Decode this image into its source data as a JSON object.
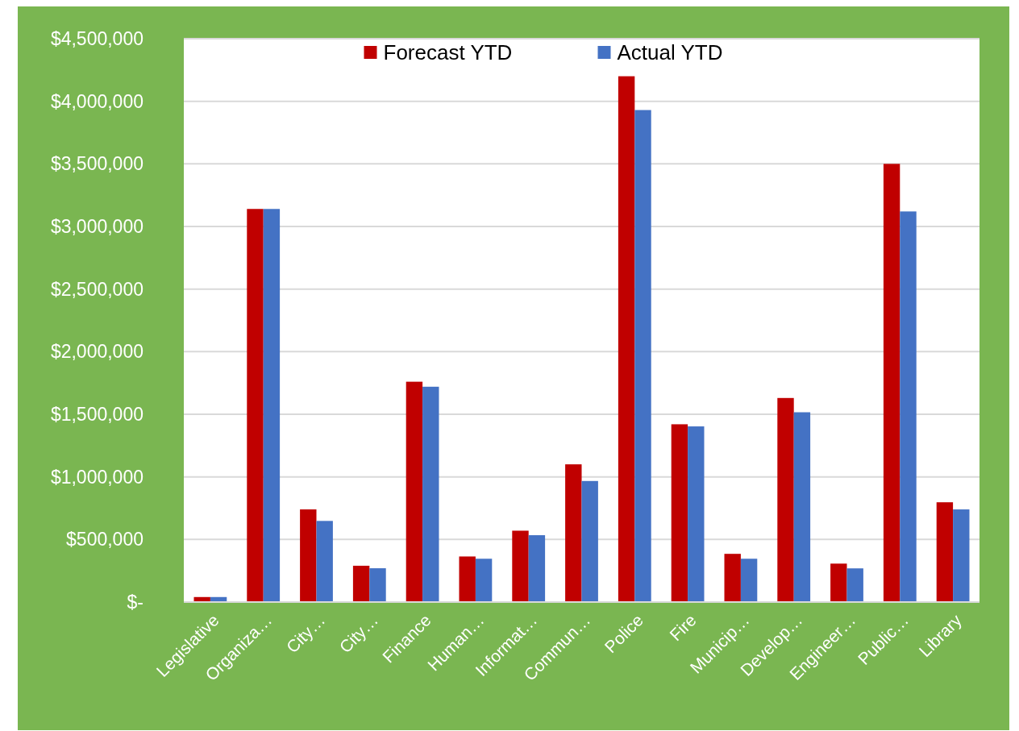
{
  "chart_data": {
    "type": "bar",
    "categories": [
      "Legislative",
      "Organiza…",
      "City…",
      "City…",
      "Finance",
      "Human…",
      "Informat…",
      "Commun…",
      "Police",
      "Fire",
      "Municip…",
      "Develop…",
      "Engineer…",
      "Public…",
      "Library"
    ],
    "series": [
      {
        "name": "Forecast YTD",
        "color": "#c00000",
        "values": [
          40000,
          3140000,
          740000,
          290000,
          1760000,
          364000,
          570000,
          1100000,
          4200000,
          1420000,
          385000,
          1630000,
          307000,
          3500000,
          797000
        ]
      },
      {
        "name": "Actual YTD",
        "color": "#4472c4",
        "values": [
          40000,
          3140000,
          648000,
          270000,
          1720000,
          346000,
          534000,
          967000,
          3930000,
          1403000,
          346000,
          1516000,
          269000,
          3120000,
          740000
        ]
      }
    ],
    "ylim": [
      0,
      4500000
    ],
    "yticks": [
      {
        "value": 0,
        "label": "$-"
      },
      {
        "value": 500000,
        "label": "$500,000"
      },
      {
        "value": 1000000,
        "label": "$1,000,000"
      },
      {
        "value": 1500000,
        "label": "$1,500,000"
      },
      {
        "value": 2000000,
        "label": "$2,000,000"
      },
      {
        "value": 2500000,
        "label": "$2,500,000"
      },
      {
        "value": 3000000,
        "label": "$3,000,000"
      },
      {
        "value": 3500000,
        "label": "$3,500,000"
      },
      {
        "value": 4000000,
        "label": "$4,000,000"
      },
      {
        "value": 4500000,
        "label": "$4,500,000"
      }
    ],
    "grid": "y",
    "legend": "top"
  }
}
